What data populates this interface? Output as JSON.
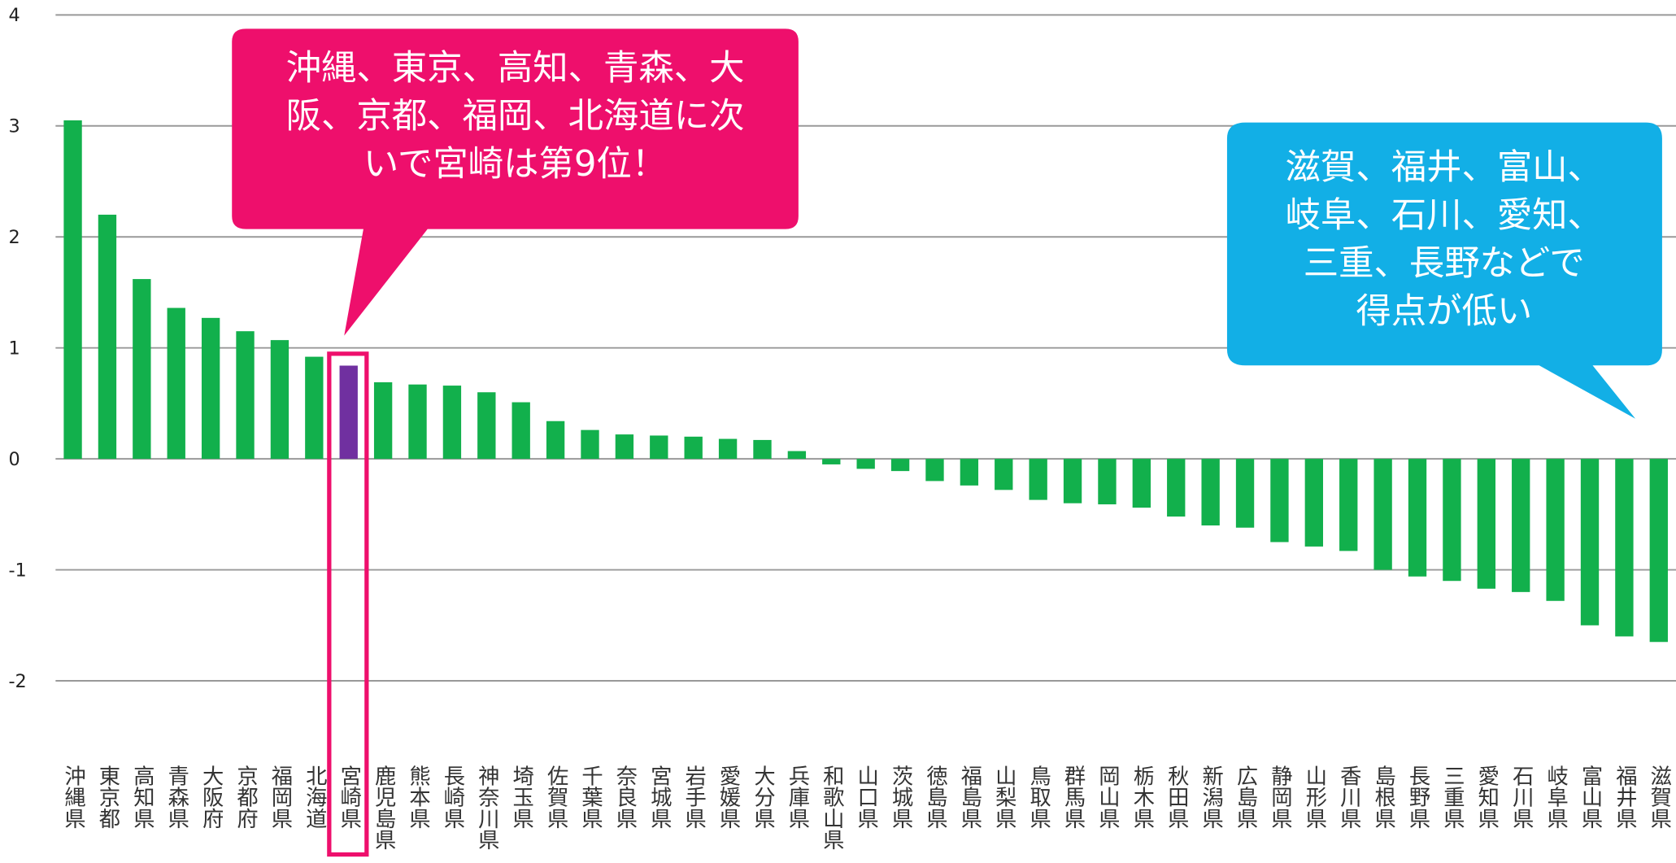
{
  "chart_data": {
    "type": "bar",
    "categories": [
      "沖縄県",
      "東京都",
      "高知県",
      "青森県",
      "大阪府",
      "京都府",
      "福岡県",
      "北海道",
      "宮崎県",
      "鹿児島県",
      "熊本県",
      "長崎県",
      "神奈川県",
      "埼玉県",
      "佐賀県",
      "千葉県",
      "奈良県",
      "宮城県",
      "岩手県",
      "愛媛県",
      "大分県",
      "兵庫県",
      "和歌山県",
      "山口県",
      "茨城県",
      "徳島県",
      "福島県",
      "山梨県",
      "鳥取県",
      "群馬県",
      "岡山県",
      "栃木県",
      "秋田県",
      "新潟県",
      "広島県",
      "静岡県",
      "山形県",
      "香川県",
      "島根県",
      "長野県",
      "三重県",
      "愛知県",
      "石川県",
      "岐阜県",
      "富山県",
      "福井県",
      "滋賀県"
    ],
    "values": [
      3.05,
      2.2,
      1.62,
      1.36,
      1.27,
      1.15,
      1.07,
      0.92,
      0.84,
      0.69,
      0.67,
      0.66,
      0.6,
      0.51,
      0.34,
      0.26,
      0.22,
      0.21,
      0.2,
      0.18,
      0.17,
      0.07,
      -0.05,
      -0.09,
      -0.11,
      -0.2,
      -0.24,
      -0.28,
      -0.37,
      -0.4,
      -0.41,
      -0.44,
      -0.52,
      -0.6,
      -0.62,
      -0.75,
      -0.79,
      -0.83,
      -1.0,
      -1.06,
      -1.1,
      -1.17,
      -1.2,
      -1.28,
      -1.5,
      -1.6,
      -1.65
    ],
    "colors": [
      "#12b04c",
      "#12b04c",
      "#12b04c",
      "#12b04c",
      "#12b04c",
      "#12b04c",
      "#12b04c",
      "#12b04c",
      "#7030a0",
      "#12b04c",
      "#12b04c",
      "#12b04c",
      "#12b04c",
      "#12b04c",
      "#12b04c",
      "#12b04c",
      "#12b04c",
      "#12b04c",
      "#12b04c",
      "#12b04c",
      "#12b04c",
      "#12b04c",
      "#12b04c",
      "#12b04c",
      "#12b04c",
      "#12b04c",
      "#12b04c",
      "#12b04c",
      "#12b04c",
      "#12b04c",
      "#12b04c",
      "#12b04c",
      "#12b04c",
      "#12b04c",
      "#12b04c",
      "#12b04c",
      "#12b04c",
      "#12b04c",
      "#12b04c",
      "#12b04c",
      "#12b04c",
      "#12b04c",
      "#12b04c",
      "#12b04c",
      "#12b04c",
      "#12b04c",
      "#12b04c"
    ],
    "ylim": [
      -2,
      4
    ],
    "yticks": [
      -2,
      -1,
      0,
      1,
      2,
      3,
      4
    ],
    "grid": true,
    "annotations": [
      {
        "lines": [
          "沖縄、東京、高知、青森、大",
          "阪、京都、福岡、北海道に次",
          "いで宮崎は第9位！"
        ],
        "color": "#ee0f6c"
      },
      {
        "lines": [
          "滋賀、福井、富山、",
          "岐阜、石川、愛知、",
          "三重、長野などで",
          "得点が低い"
        ],
        "color": "#12afe6"
      }
    ]
  }
}
